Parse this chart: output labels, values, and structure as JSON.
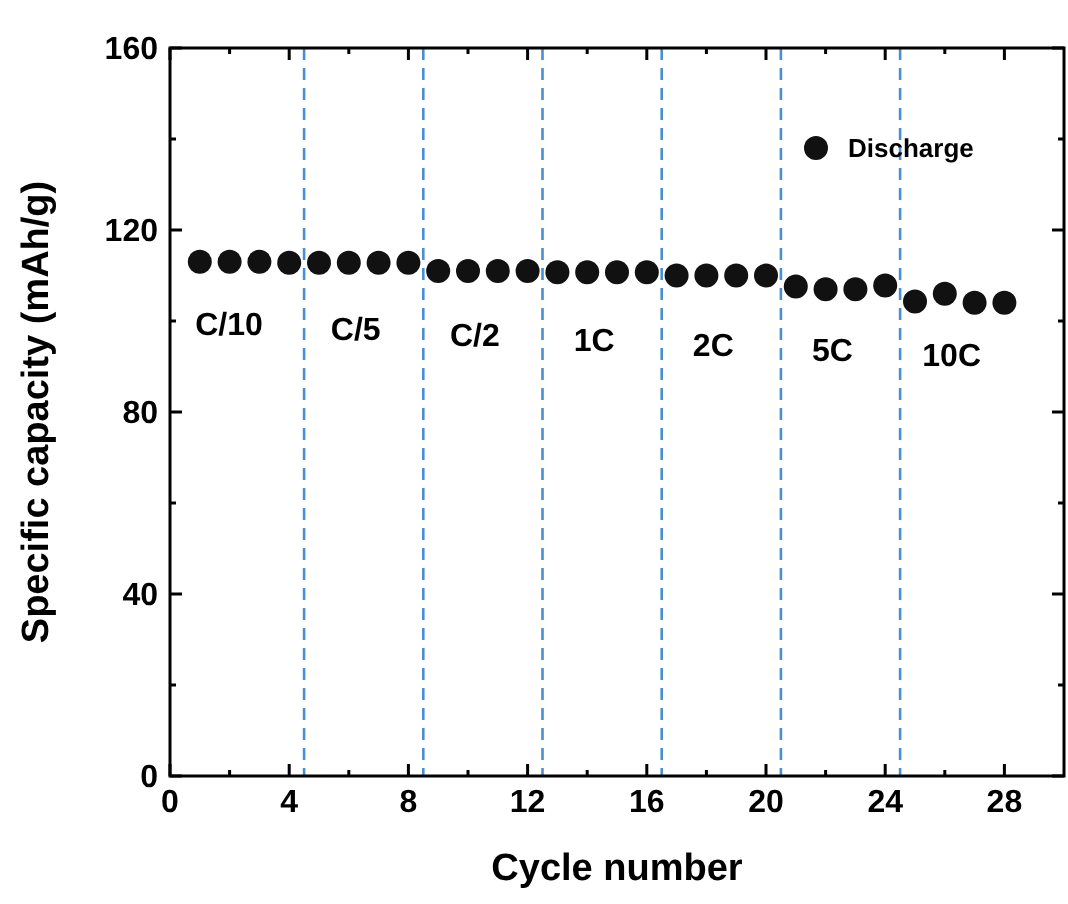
{
  "chart_data": {
    "type": "scatter",
    "xlabel": "Cycle number",
    "ylabel": "Specific capacity (mAh/g)",
    "x": [
      1,
      2,
      3,
      4,
      5,
      6,
      7,
      8,
      9,
      10,
      11,
      12,
      13,
      14,
      15,
      16,
      17,
      18,
      19,
      20,
      21,
      22,
      23,
      24,
      25,
      26,
      27,
      28
    ],
    "series": [
      {
        "name": "Discharge",
        "color": "#111111",
        "values": [
          113,
          113,
          113,
          112.8,
          112.8,
          112.8,
          112.8,
          112.8,
          111,
          111,
          111,
          111,
          110.7,
          110.7,
          110.7,
          110.7,
          110,
          110,
          110,
          110,
          107.6,
          107,
          107,
          107.8,
          104.3,
          106,
          104,
          104
        ]
      }
    ],
    "xlim": [
      0,
      30
    ],
    "ylim": [
      0,
      160
    ],
    "xticks": [
      0,
      {
        "value": 2,
        "label": null
      },
      4,
      {
        "value": 6,
        "label": null
      },
      8,
      {
        "value": 10,
        "label": null
      },
      12,
      {
        "value": 14,
        "label": null
      },
      16,
      {
        "value": 18,
        "label": null
      },
      20,
      {
        "value": 22,
        "label": null
      },
      24,
      {
        "value": 26,
        "label": null
      },
      28
    ],
    "yticks": [
      0,
      {
        "value": 20,
        "label": null
      },
      40,
      {
        "value": 60,
        "label": null
      },
      80,
      {
        "value": 100,
        "label": null
      },
      120,
      {
        "value": 140,
        "label": null
      },
      160
    ],
    "ref_lines": [
      {
        "axis": "x",
        "value": 4.5,
        "color": "#4a8fd0",
        "line_style": "dashed"
      },
      {
        "axis": "x",
        "value": 8.5,
        "color": "#4a8fd0",
        "line_style": "dashed"
      },
      {
        "axis": "x",
        "value": 12.5,
        "color": "#4a8fd0",
        "line_style": "dashed"
      },
      {
        "axis": "x",
        "value": 16.5,
        "color": "#4a8fd0",
        "line_style": "dashed"
      },
      {
        "axis": "x",
        "value": 20.5,
        "color": "#4a8fd0",
        "line_style": "dashed"
      },
      {
        "axis": "x",
        "value": 24.5,
        "color": "#4a8fd0",
        "line_style": "dashed"
      }
    ],
    "annotations": [
      "C/10",
      "C/5",
      "C/2",
      "1C",
      "2C",
      "5C",
      "10C"
    ],
    "marker": "circle",
    "legend": "top right",
    "grid": false
  }
}
